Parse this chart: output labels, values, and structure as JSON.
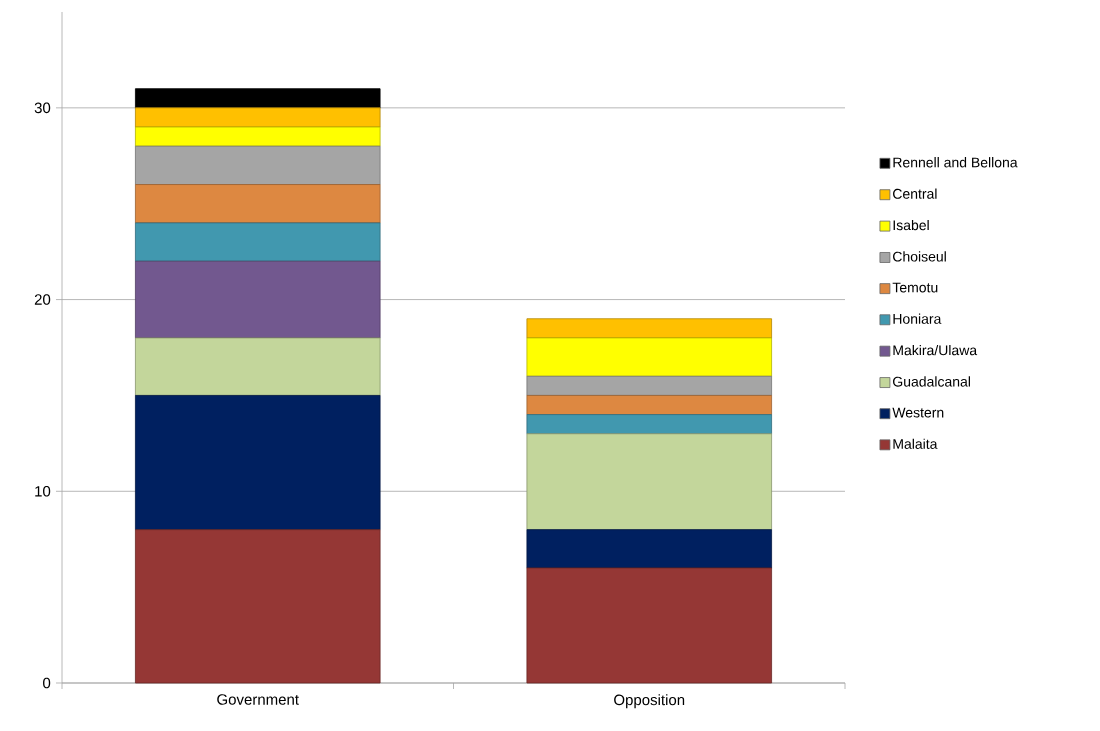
{
  "chart_data": {
    "type": "bar",
    "stacked": true,
    "categories": [
      "Government",
      "Opposition"
    ],
    "series": [
      {
        "name": "Malaita",
        "color": "#953735",
        "values": [
          8,
          6
        ]
      },
      {
        "name": "Western",
        "color": "#002060",
        "values": [
          7,
          2
        ]
      },
      {
        "name": "Guadalcanal",
        "color": "#c3d69b",
        "values": [
          3,
          5
        ]
      },
      {
        "name": "Makira/Ulawa",
        "color": "#72588f",
        "values": [
          4,
          0
        ]
      },
      {
        "name": "Honiara",
        "color": "#4198af",
        "values": [
          2,
          1
        ]
      },
      {
        "name": "Temotu",
        "color": "#dd8841",
        "values": [
          2,
          1
        ]
      },
      {
        "name": "Choiseul",
        "color": "#a5a5a5",
        "values": [
          2,
          1
        ]
      },
      {
        "name": "Isabel",
        "color": "#ffff00",
        "values": [
          1,
          2
        ]
      },
      {
        "name": "Central",
        "color": "#ffc000",
        "values": [
          1,
          1
        ]
      },
      {
        "name": "Rennell and Bellona",
        "color": "#000000",
        "values": [
          1,
          0
        ]
      }
    ],
    "ylim": [
      0,
      35
    ],
    "yticks": [
      0,
      10,
      20,
      30
    ],
    "grid": "y",
    "legend": "right"
  }
}
